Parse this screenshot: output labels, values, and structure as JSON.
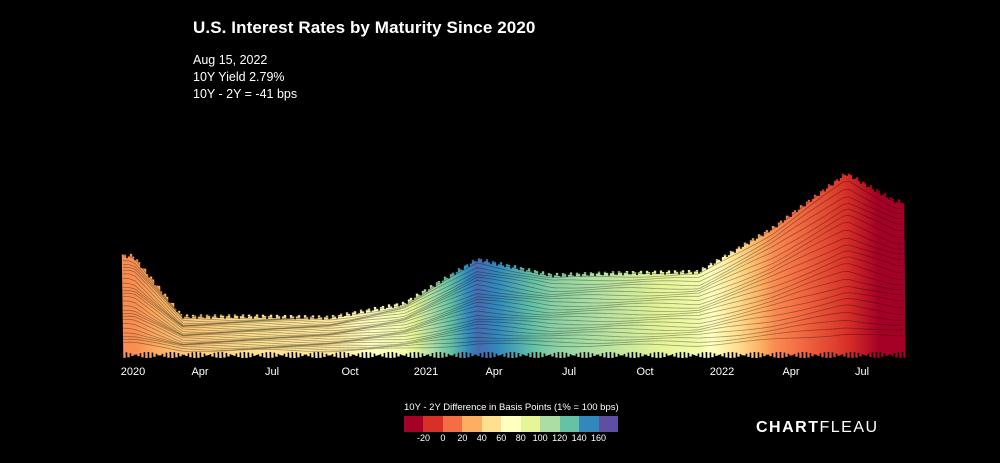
{
  "chart_data": {
    "type": "area",
    "title": "U.S. Interest Rates by Maturity Since 2020",
    "annotation": {
      "date": "Aug 15, 2022",
      "yield_10y": "10Y Yield 2.79%",
      "spread": "10Y - 2Y = -41 bps"
    },
    "x_tick_labels": [
      "2020",
      "Apr",
      "Jul",
      "Oct",
      "2021",
      "Apr",
      "Jul",
      "Oct",
      "2022",
      "Apr",
      "Jul"
    ],
    "series": [
      {
        "x": "2020-01",
        "yield_10y": 1.8,
        "spread_bps": 20
      },
      {
        "x": "2020-03",
        "yield_10y": 0.7,
        "spread_bps": 40
      },
      {
        "x": "2020-06",
        "yield_10y": 0.7,
        "spread_bps": 50
      },
      {
        "x": "2020-09",
        "yield_10y": 0.68,
        "spread_bps": 55
      },
      {
        "x": "2020-12",
        "yield_10y": 0.93,
        "spread_bps": 80
      },
      {
        "x": "2021-03",
        "yield_10y": 1.74,
        "spread_bps": 160
      },
      {
        "x": "2021-06",
        "yield_10y": 1.45,
        "spread_bps": 120
      },
      {
        "x": "2021-09",
        "yield_10y": 1.49,
        "spread_bps": 100
      },
      {
        "x": "2021-12",
        "yield_10y": 1.51,
        "spread_bps": 80
      },
      {
        "x": "2022-03",
        "yield_10y": 2.3,
        "spread_bps": 20
      },
      {
        "x": "2022-06",
        "yield_10y": 3.3,
        "spread_bps": -10
      },
      {
        "x": "2022-08",
        "yield_10y": 2.79,
        "spread_bps": -41
      }
    ],
    "legend": {
      "title": "10Y - 2Y Difference in Basis Points (1% = 100 bps)",
      "ticks": [
        "-20",
        "0",
        "20",
        "40",
        "60",
        "80",
        "100",
        "120",
        "140",
        "160"
      ],
      "colors": [
        "#a50026",
        "#d73027",
        "#f46d43",
        "#fdae61",
        "#fee090",
        "#ffffbf",
        "#e6f598",
        "#abdda4",
        "#66c2a5",
        "#3288bd",
        "#5e4fa2"
      ]
    }
  },
  "brand": {
    "bold": "CHART",
    "light": "FLEAU"
  }
}
